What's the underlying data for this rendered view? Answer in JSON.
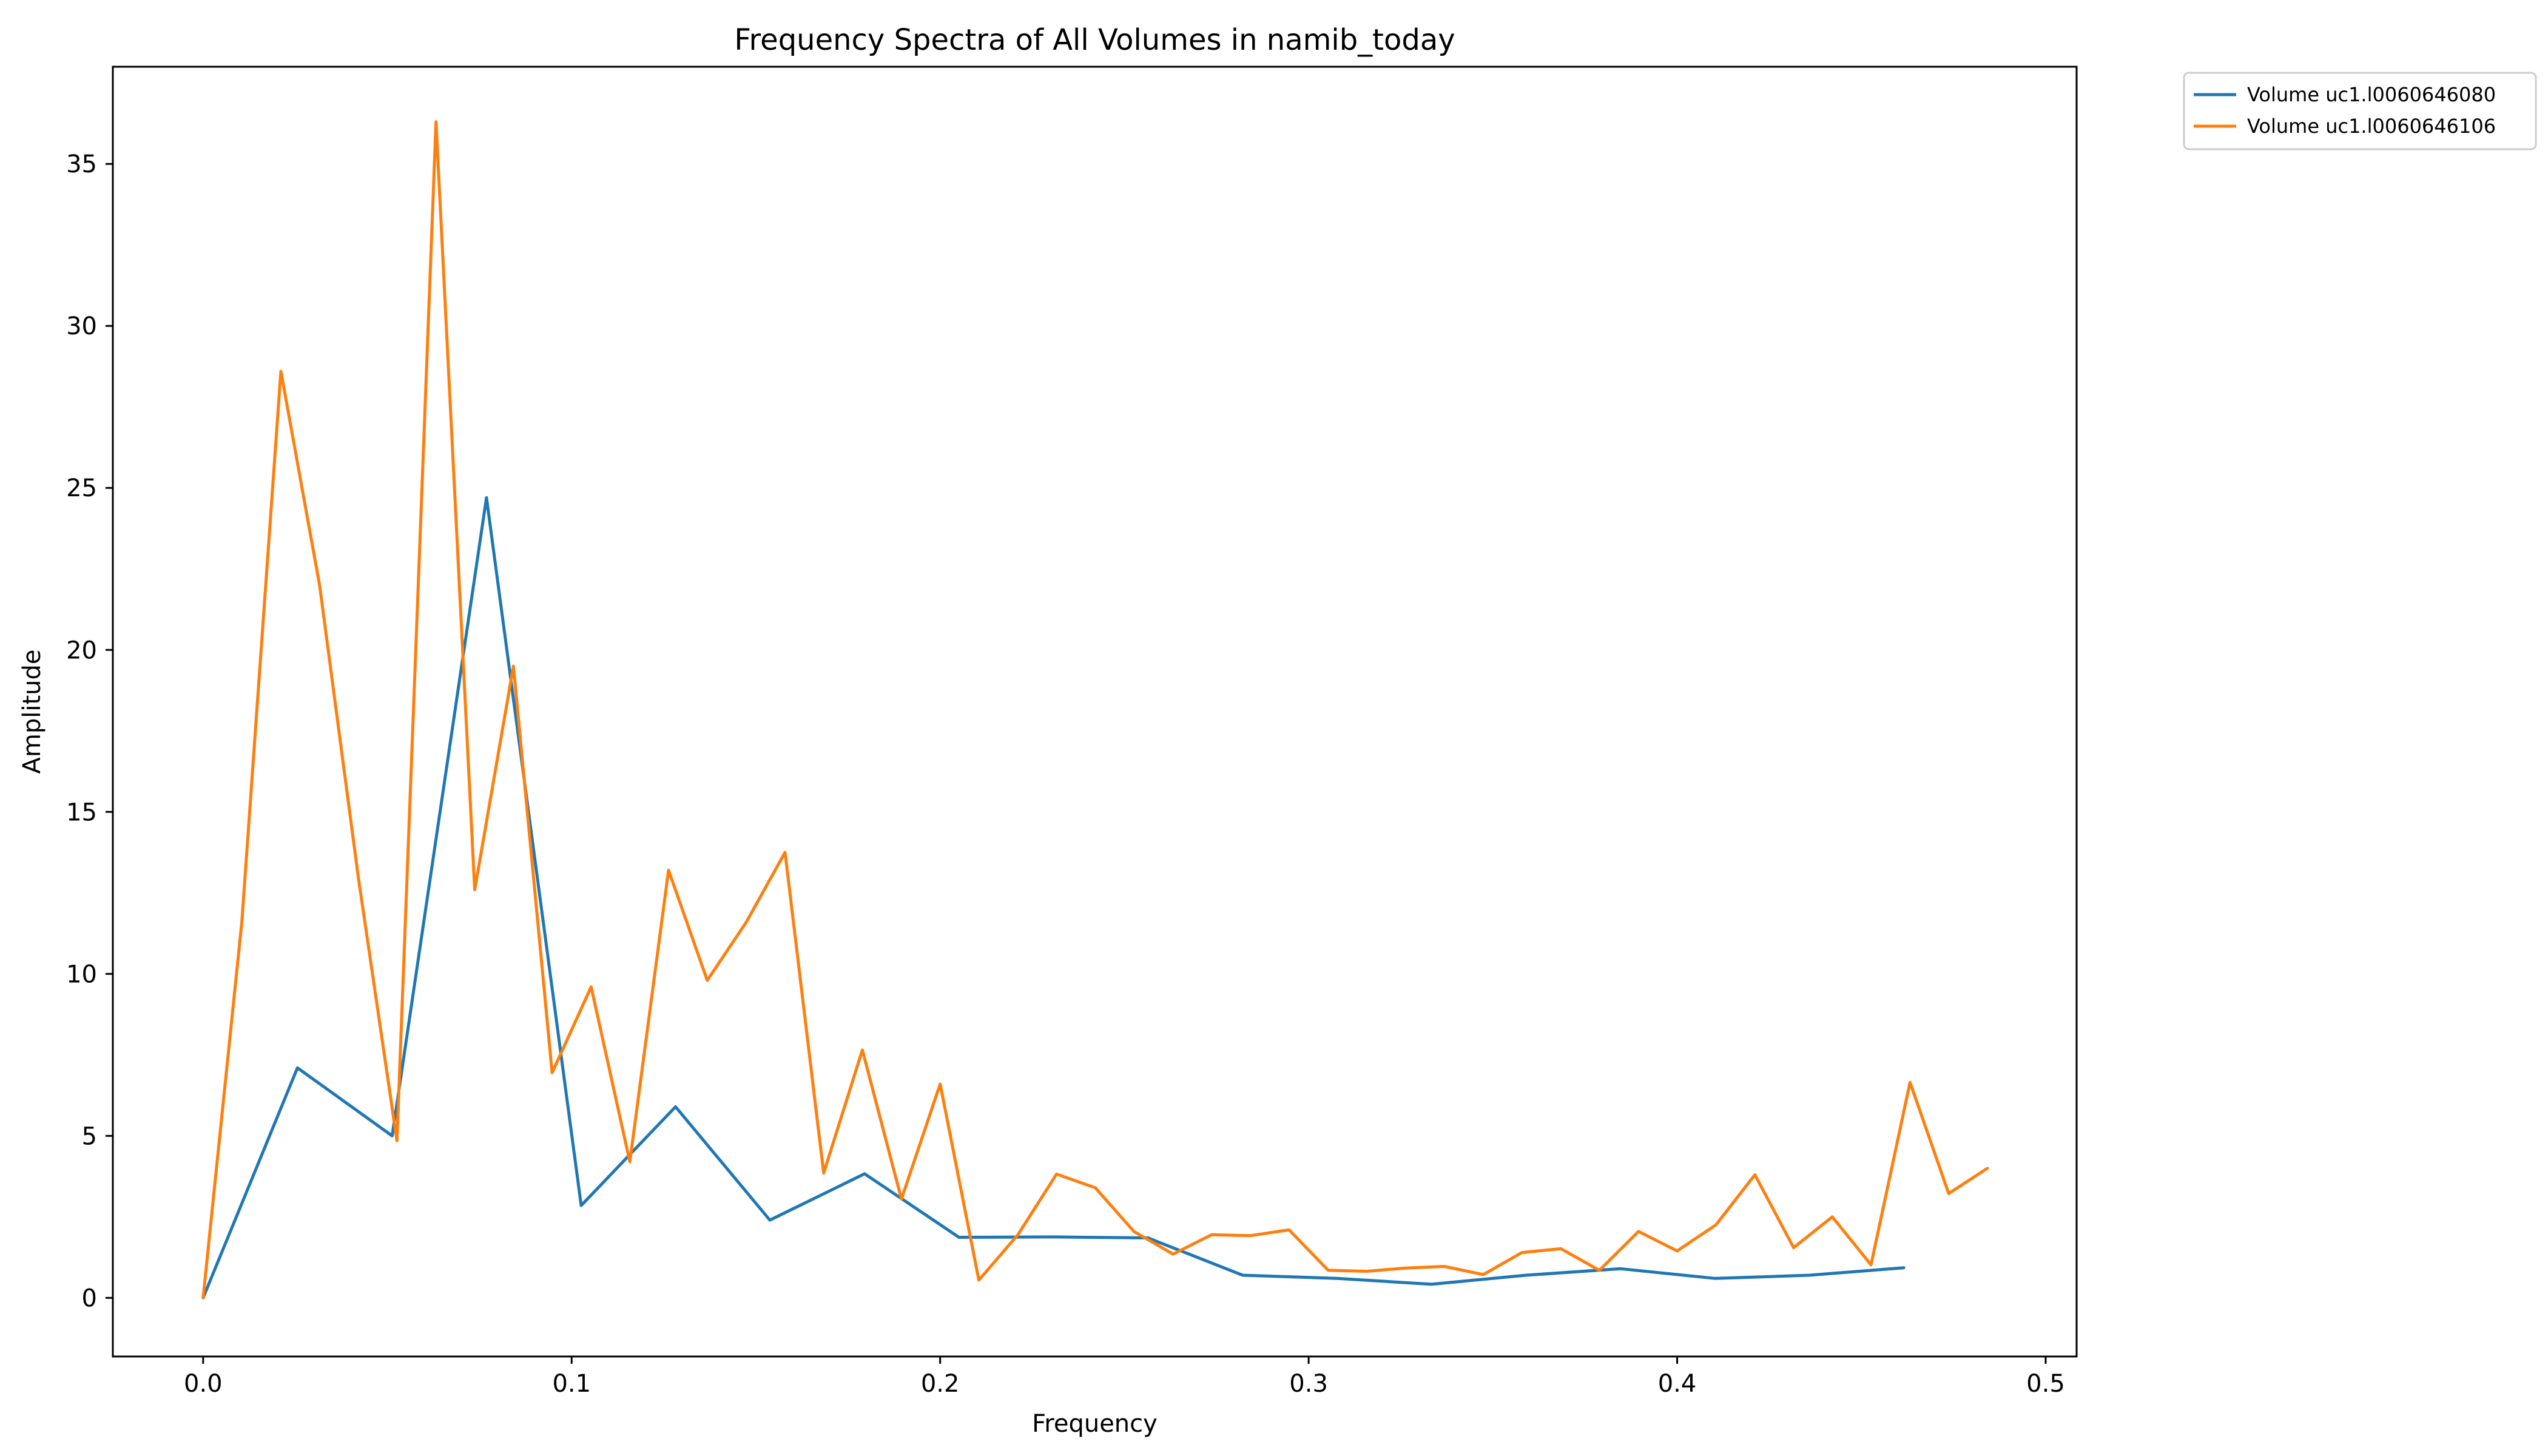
{
  "chart_data": {
    "type": "line",
    "title": "Frequency Spectra of All Volumes in namib_today",
    "xlabel": "Frequency",
    "ylabel": "Amplitude",
    "xlim": [
      -0.0245,
      0.5084
    ],
    "ylim": [
      -1.81,
      38.0
    ],
    "xticks": [
      0.0,
      0.1,
      0.2,
      0.3,
      0.4,
      0.5
    ],
    "xtick_labels": [
      "0.0",
      "0.1",
      "0.2",
      "0.3",
      "0.4",
      "0.5"
    ],
    "yticks": [
      0,
      5,
      10,
      15,
      20,
      25,
      30,
      35
    ],
    "ytick_labels": [
      "0",
      "5",
      "10",
      "15",
      "20",
      "25",
      "30",
      "35"
    ],
    "grid": false,
    "legend_position": "outside-top-right",
    "series": [
      {
        "name": "Volume uc1.l0060646080",
        "color": "#1f77b4",
        "x": [
          0.0,
          0.0256,
          0.0513,
          0.0769,
          0.1026,
          0.1282,
          0.1538,
          0.1795,
          0.2051,
          0.2308,
          0.2564,
          0.2821,
          0.3077,
          0.3333,
          0.359,
          0.3846,
          0.4103,
          0.4359,
          0.4615
        ],
        "y": [
          0.0,
          7.1,
          5.0,
          24.7,
          2.85,
          5.9,
          2.4,
          3.83,
          1.87,
          1.88,
          1.85,
          0.7,
          0.6,
          0.42,
          0.7,
          0.9,
          0.6,
          0.7,
          0.93
        ]
      },
      {
        "name": "Volume uc1.l0060646106",
        "color": "#ff7f0e",
        "x": [
          0.0,
          0.0105,
          0.0211,
          0.0316,
          0.0421,
          0.0526,
          0.0632,
          0.0737,
          0.0842,
          0.0947,
          0.1053,
          0.1158,
          0.1263,
          0.1368,
          0.1474,
          0.1579,
          0.1684,
          0.1789,
          0.1895,
          0.2,
          0.2105,
          0.2211,
          0.2316,
          0.2421,
          0.2526,
          0.2632,
          0.2737,
          0.2842,
          0.2947,
          0.3053,
          0.3158,
          0.3263,
          0.3368,
          0.3474,
          0.3579,
          0.3684,
          0.3789,
          0.3895,
          0.4,
          0.4105,
          0.4211,
          0.4316,
          0.4421,
          0.4526,
          0.4632,
          0.4737,
          0.4842
        ],
        "y": [
          0.0,
          11.6,
          28.6,
          22.0,
          13.0,
          4.85,
          36.3,
          12.6,
          19.5,
          6.95,
          9.6,
          4.2,
          13.2,
          9.8,
          11.6,
          13.75,
          3.85,
          7.65,
          3.05,
          6.6,
          0.55,
          1.95,
          3.82,
          3.4,
          2.05,
          1.35,
          1.95,
          1.92,
          2.1,
          0.85,
          0.82,
          0.92,
          0.97,
          0.72,
          1.4,
          1.52,
          0.85,
          2.05,
          1.45,
          2.25,
          3.8,
          1.55,
          2.5,
          1.02,
          6.65,
          3.22,
          4.0
        ]
      }
    ]
  }
}
